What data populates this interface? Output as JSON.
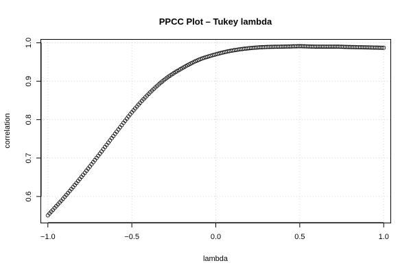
{
  "chart_data": {
    "type": "scatter",
    "title": "PPCC Plot – Tukey lambda",
    "xlabel": "lambda",
    "ylabel": "correlation",
    "xlim": [
      -1.04,
      1.04
    ],
    "ylim": [
      0.532,
      1.008
    ],
    "x_ticks": [
      -1.0,
      -0.5,
      0.0,
      0.5,
      1.0
    ],
    "x_tick_labels": [
      "−1.0",
      "−0.5",
      "0.0",
      "0.5",
      "1.0"
    ],
    "y_ticks": [
      0.6,
      0.7,
      0.8,
      0.9,
      1.0
    ],
    "y_tick_labels": [
      "0.6",
      "0.7",
      "0.8",
      "0.9",
      "1.0"
    ],
    "grid": true,
    "marker": "open-circle",
    "x": [
      -1.0,
      -0.9,
      -0.8,
      -0.7,
      -0.6,
      -0.5,
      -0.4,
      -0.3,
      -0.2,
      -0.1,
      0.0,
      0.1,
      0.2,
      0.3,
      0.4,
      0.5,
      0.6,
      0.7,
      0.8,
      0.9,
      1.0
    ],
    "y": [
      0.551,
      0.599,
      0.651,
      0.706,
      0.763,
      0.819,
      0.867,
      0.906,
      0.934,
      0.956,
      0.97,
      0.98,
      0.986,
      0.989,
      0.99,
      0.991,
      0.99,
      0.99,
      0.989,
      0.988,
      0.987
    ],
    "n_points": 201
  }
}
